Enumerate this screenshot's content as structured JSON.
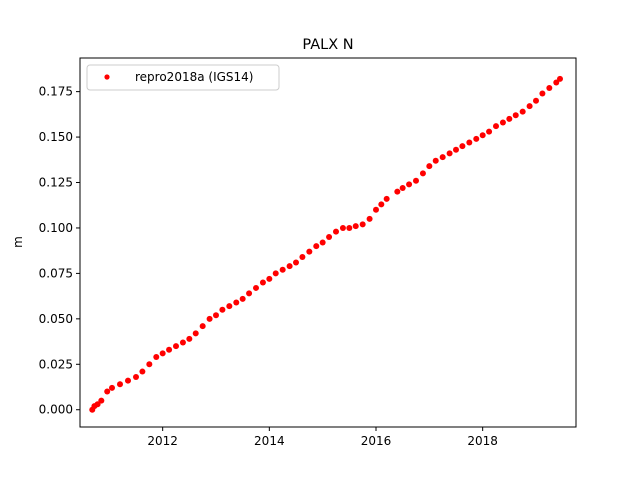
{
  "chart_data": {
    "type": "scatter",
    "title": "PALX N",
    "xlabel": "",
    "ylabel": "m",
    "xlim": [
      2010.45,
      2019.75
    ],
    "ylim": [
      -0.0095,
      0.1935
    ],
    "x_ticks": [
      2012,
      2014,
      2016,
      2018
    ],
    "x_tick_labels": [
      "2012",
      "2014",
      "2016",
      "2018"
    ],
    "y_ticks": [
      0.0,
      0.025,
      0.05,
      0.075,
      0.1,
      0.125,
      0.15,
      0.175
    ],
    "y_tick_labels": [
      "0.000",
      "0.025",
      "0.050",
      "0.075",
      "0.100",
      "0.125",
      "0.150",
      "0.175"
    ],
    "grid": false,
    "legend_position": "upper-left",
    "marker_color": "#ff0000",
    "series": [
      {
        "name": "repro2018a (IGS14)",
        "x": [
          2010.68,
          2010.72,
          2010.78,
          2010.85,
          2010.96,
          2011.05,
          2011.2,
          2011.35,
          2011.5,
          2011.62,
          2011.75,
          2011.88,
          2012.0,
          2012.12,
          2012.25,
          2012.38,
          2012.5,
          2012.62,
          2012.75,
          2012.88,
          2013.0,
          2013.12,
          2013.25,
          2013.38,
          2013.5,
          2013.62,
          2013.75,
          2013.88,
          2014.0,
          2014.12,
          2014.25,
          2014.38,
          2014.5,
          2014.62,
          2014.75,
          2014.88,
          2015.0,
          2015.12,
          2015.25,
          2015.38,
          2015.5,
          2015.62,
          2015.75,
          2015.88,
          2016.0,
          2016.1,
          2016.2,
          2016.4,
          2016.5,
          2016.62,
          2016.75,
          2016.88,
          2017.0,
          2017.12,
          2017.25,
          2017.38,
          2017.5,
          2017.62,
          2017.75,
          2017.88,
          2018.0,
          2018.12,
          2018.25,
          2018.38,
          2018.5,
          2018.62,
          2018.75,
          2018.88,
          2019.0,
          2019.12,
          2019.25,
          2019.38,
          2019.45
        ],
        "y": [
          0.0,
          0.002,
          0.003,
          0.005,
          0.01,
          0.012,
          0.014,
          0.016,
          0.018,
          0.021,
          0.025,
          0.029,
          0.031,
          0.033,
          0.035,
          0.037,
          0.039,
          0.042,
          0.046,
          0.05,
          0.052,
          0.055,
          0.057,
          0.059,
          0.061,
          0.064,
          0.067,
          0.07,
          0.072,
          0.075,
          0.077,
          0.079,
          0.081,
          0.084,
          0.087,
          0.09,
          0.092,
          0.095,
          0.098,
          0.1,
          0.1,
          0.101,
          0.102,
          0.105,
          0.11,
          0.113,
          0.116,
          0.12,
          0.122,
          0.124,
          0.126,
          0.13,
          0.134,
          0.137,
          0.139,
          0.141,
          0.143,
          0.145,
          0.147,
          0.149,
          0.151,
          0.153,
          0.156,
          0.158,
          0.16,
          0.162,
          0.164,
          0.167,
          0.17,
          0.174,
          0.177,
          0.18,
          0.182
        ]
      }
    ]
  }
}
